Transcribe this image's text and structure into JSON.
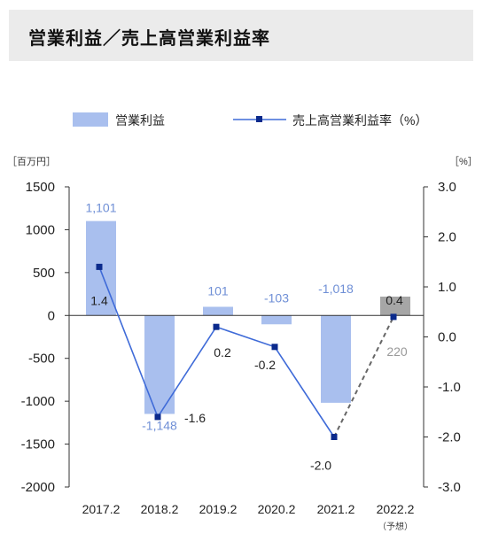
{
  "header": {
    "title": "営業利益／売上高営業利益率"
  },
  "chart_data": {
    "type": "bar+line",
    "categories": [
      "2017.2",
      "2018.2",
      "2019.2",
      "2020.2",
      "2021.2",
      "2022.2"
    ],
    "category_note": "（予想）",
    "series": [
      {
        "name": "営業利益",
        "kind": "bar",
        "axis": "left",
        "values": [
          1101,
          -1148,
          101,
          -103,
          -1018,
          220
        ],
        "labels": [
          "1,101",
          "-1,148",
          "101",
          "-103",
          "-1,018",
          "220"
        ],
        "forecast_index": 5
      },
      {
        "name": "売上高営業利益率（%）",
        "kind": "line",
        "axis": "right",
        "values": [
          1.4,
          -1.6,
          0.2,
          -0.2,
          -2.0,
          0.4
        ],
        "labels": [
          "1.4",
          "-1.6",
          "0.2",
          "-0.2",
          "-2.0",
          "0.4"
        ],
        "forecast_index": 5
      }
    ],
    "y_left": {
      "unit_label": "［百万円］",
      "ticks": [
        1500,
        1000,
        500,
        0,
        -500,
        -1000,
        -1500,
        -2000
      ],
      "tick_labels": [
        "1500",
        "1000",
        "500",
        "0",
        "-500",
        "-1000",
        "-1500",
        "-2000"
      ],
      "ylim": [
        -2000,
        1500
      ]
    },
    "y_right": {
      "unit_label": "［%］",
      "ticks": [
        3.0,
        2.0,
        1.0,
        0.0,
        -1.0,
        -2.0,
        -3.0
      ],
      "tick_labels": [
        "3.0",
        "2.0",
        "1.0",
        "0.0",
        "-1.0",
        "-2.0",
        "-3.0"
      ],
      "ylim": [
        -3.0,
        3.0
      ]
    },
    "legend": {
      "position": "top"
    },
    "colors": {
      "bar": "#a9bfee",
      "bar_forecast": "#a6a6a6",
      "bar_label": "#6f8fd6",
      "line": "#3f6bd8",
      "marker": "#0b2a8c",
      "forecast_line": "#666666",
      "axis": "#333333"
    }
  }
}
